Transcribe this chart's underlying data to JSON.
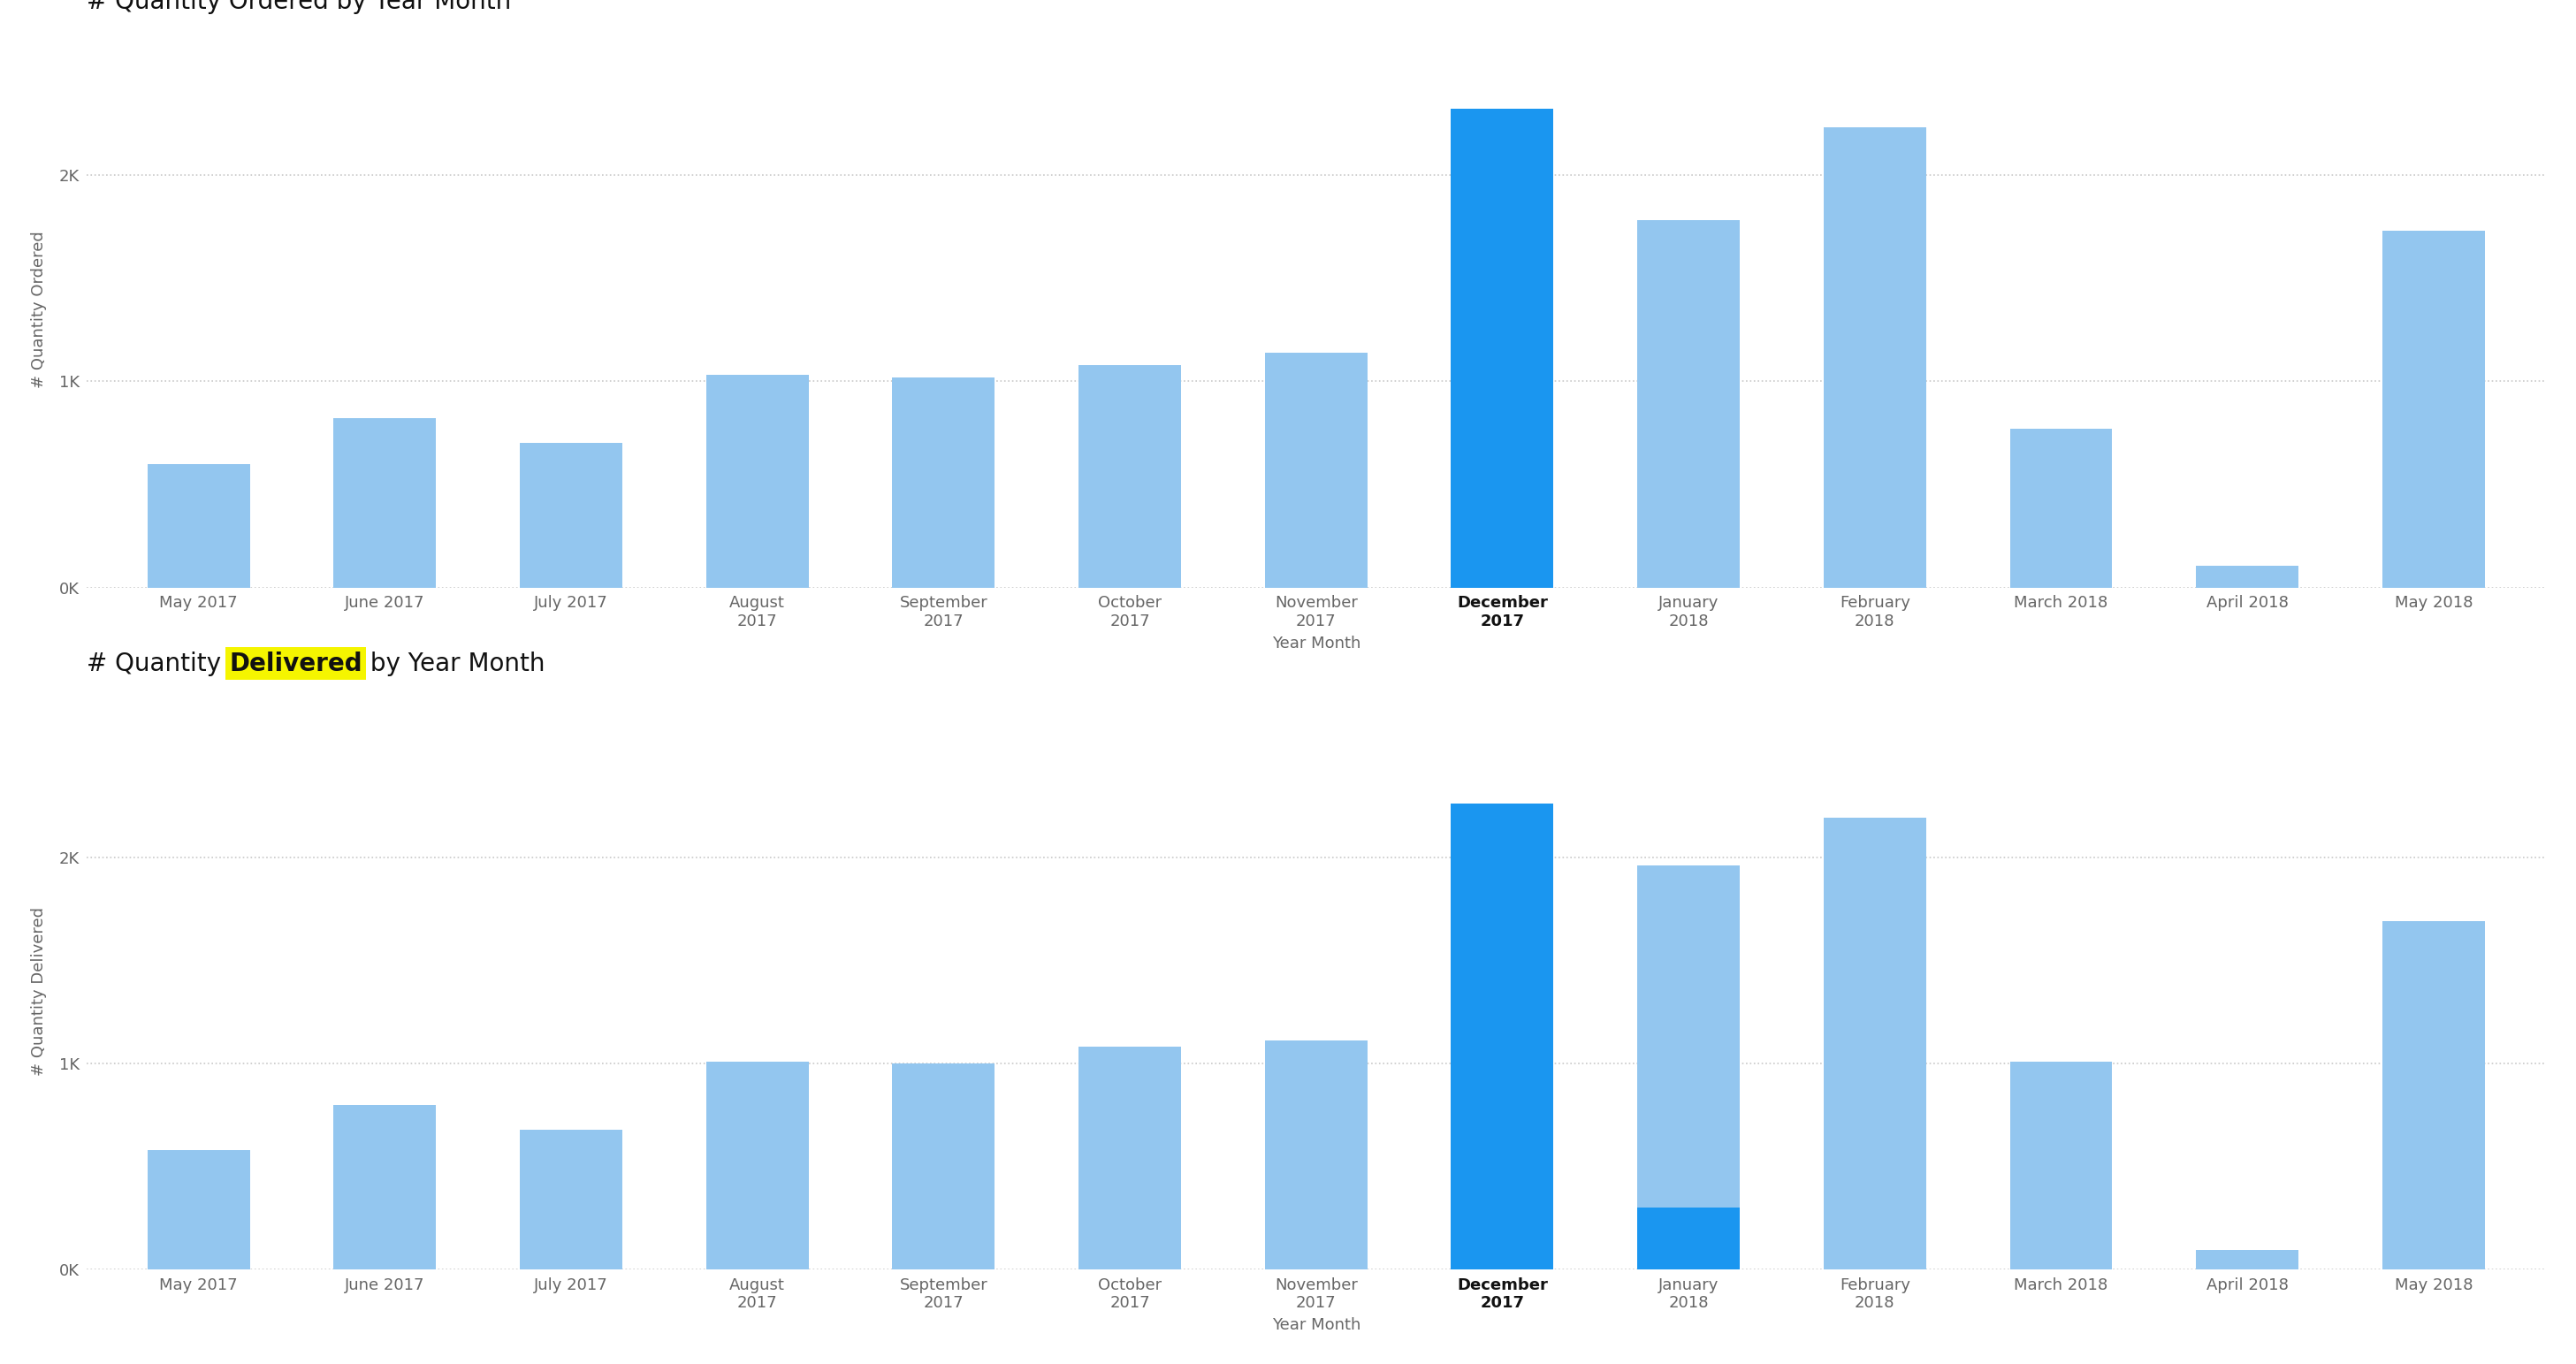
{
  "chart1": {
    "title_pre": "# Quantity Ordered by Year Month",
    "ylabel": "# Quantity Ordered",
    "xlabel": "Year Month",
    "categories": [
      "May 2017",
      "June 2017",
      "July 2017",
      "August\n2017",
      "September\n2017",
      "October\n2017",
      "November\n2017",
      "December\n2017",
      "January\n2018",
      "February\n2018",
      "March 2018",
      "April 2018",
      "May 2018"
    ],
    "values": [
      600,
      820,
      700,
      1030,
      1020,
      1080,
      1140,
      2320,
      1780,
      2230,
      770,
      105,
      1730
    ],
    "colors": [
      "#93c6ef",
      "#93c6ef",
      "#93c6ef",
      "#93c6ef",
      "#93c6ef",
      "#93c6ef",
      "#93c6ef",
      "#1a96f0",
      "#93c6ef",
      "#93c6ef",
      "#93c6ef",
      "#93c6ef",
      "#93c6ef"
    ],
    "highlight_index": 7,
    "ylim": [
      0,
      2700
    ],
    "yticks": [
      0,
      1000,
      2000
    ],
    "ytick_labels": [
      "0K",
      "1K",
      "2K"
    ]
  },
  "chart2": {
    "title_pre": "# Quantity ",
    "title_highlight": "Delivered",
    "title_post": " by Year Month",
    "ylabel": "# Quantity Delivered",
    "xlabel": "Year Month",
    "categories": [
      "May 2017",
      "June 2017",
      "July 2017",
      "August\n2017",
      "September\n2017",
      "October\n2017",
      "November\n2017",
      "December\n2017",
      "January\n2018",
      "February\n2018",
      "March 2018",
      "April 2018",
      "May 2018"
    ],
    "values": [
      580,
      800,
      680,
      1010,
      1000,
      1080,
      1110,
      2260,
      1960,
      2190,
      1010,
      95,
      1690
    ],
    "blue_bottom": [
      0,
      0,
      0,
      0,
      0,
      0,
      0,
      0,
      300,
      0,
      0,
      0,
      0
    ],
    "colors": [
      "#93c6ef",
      "#93c6ef",
      "#93c6ef",
      "#93c6ef",
      "#93c6ef",
      "#93c6ef",
      "#93c6ef",
      "#1a96f0",
      "#93c6ef",
      "#93c6ef",
      "#93c6ef",
      "#93c6ef",
      "#93c6ef"
    ],
    "highlight_index": 7,
    "ylim": [
      0,
      2700
    ],
    "yticks": [
      0,
      1000,
      2000
    ],
    "ytick_labels": [
      "0K",
      "1K",
      "2K"
    ]
  },
  "background_color": "#ffffff",
  "grid_color": "#c8c8c8",
  "title_fontsize": 20,
  "axis_label_fontsize": 13,
  "tick_fontsize": 13,
  "highlight_bg_color": "#f5f500",
  "highlight_blue": "#1a96f0",
  "light_blue": "#93c6ef",
  "title_color": "#111111",
  "axis_color": "#666666"
}
